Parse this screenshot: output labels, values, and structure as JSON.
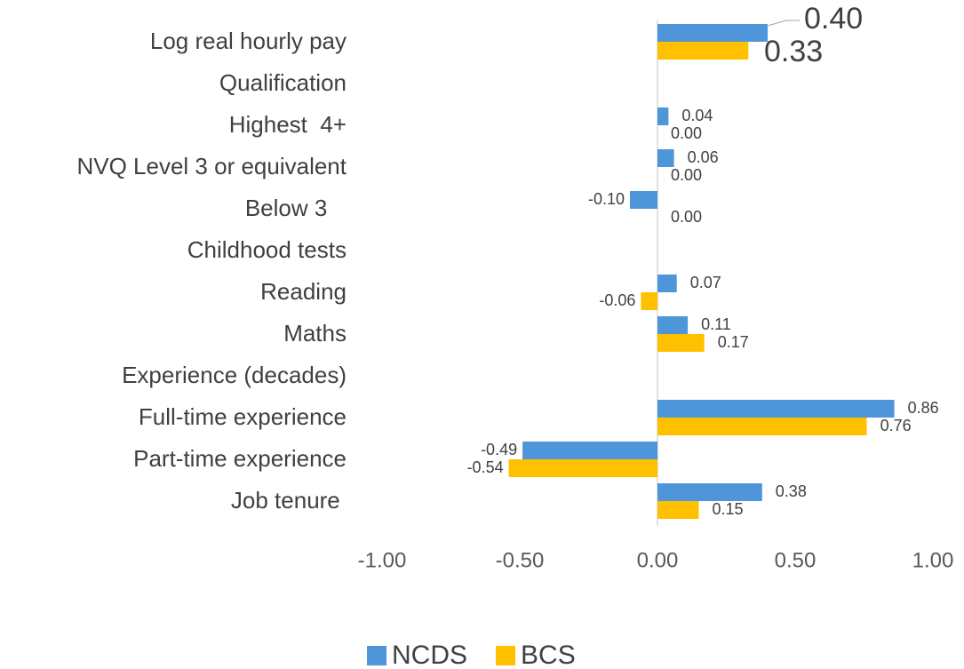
{
  "chart_data": {
    "type": "bar",
    "orientation": "horizontal",
    "categories": [
      "Log real hourly pay",
      "Qualification",
      "Highest  4+",
      "NVQ Level 3 or equivalent",
      "Below 3   ",
      "Childhood tests",
      "Reading",
      "Maths",
      "Experience (decades)",
      "Full-time experience",
      "Part-time experience",
      "Job tenure "
    ],
    "series": [
      {
        "name": "NCDS",
        "color": "#4e95d9",
        "values": [
          0.4,
          null,
          0.04,
          0.06,
          -0.1,
          null,
          0.07,
          0.11,
          null,
          0.86,
          -0.49,
          0.38
        ],
        "value_labels": [
          "0.40",
          null,
          "0.04",
          "0.06",
          "-0.10",
          null,
          "0.07",
          "0.11",
          null,
          "0.86",
          "-0.49",
          "0.38"
        ]
      },
      {
        "name": "BCS",
        "color": "#ffc000",
        "values": [
          0.33,
          null,
          0.0,
          0.0,
          0.0,
          null,
          -0.06,
          0.17,
          null,
          0.76,
          -0.54,
          0.15
        ],
        "value_labels": [
          "0.33",
          null,
          "0.00",
          "0.00",
          "0.00",
          null,
          "-0.06",
          "0.17",
          null,
          "0.76",
          "-0.54",
          "0.15"
        ]
      }
    ],
    "xlim": [
      -1,
      1
    ],
    "xticks": [
      {
        "value": -1,
        "label": "-1.00"
      },
      {
        "value": -0.5,
        "label": "-0.50"
      },
      {
        "value": 0,
        "label": "0.00"
      },
      {
        "value": 0.5,
        "label": "0.50"
      },
      {
        "value": 1,
        "label": "1.00"
      }
    ],
    "legend": "bottom"
  }
}
